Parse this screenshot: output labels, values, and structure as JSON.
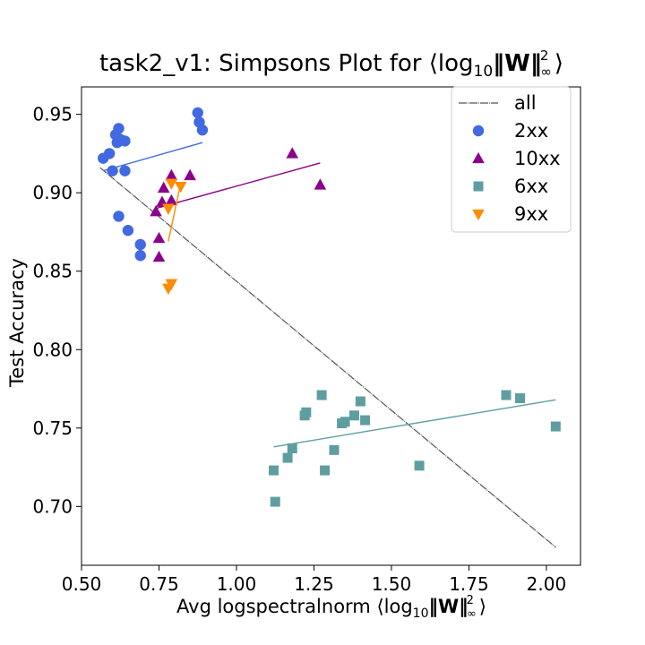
{
  "chart_data": {
    "type": "scatter",
    "title_main": "task2_v1: Simpsons Plot for ⟨log",
    "title_sub": "10",
    "title_bold": "‖W‖",
    "title_sup": "2",
    "title_sub2": "∞",
    "title_end": "⟩",
    "xlabel_main": "Avg logspectralnorm ⟨log",
    "xlabel_sub": "10",
    "xlabel_bold": "‖W‖",
    "xlabel_sup": "2",
    "xlabel_sub2": "∞",
    "xlabel_end": "⟩",
    "ylabel": "Test Accuracy",
    "xlim": [
      0.5,
      2.11
    ],
    "ylim": [
      0.6625,
      0.9675
    ],
    "xticks": [
      "0.50",
      "0.75",
      "1.00",
      "1.25",
      "1.50",
      "1.75",
      "2.00"
    ],
    "yticks": [
      "0.70",
      "0.75",
      "0.80",
      "0.85",
      "0.90",
      "0.95"
    ],
    "legend_position": "top-right",
    "grid": false,
    "all_line": {
      "name": "all",
      "color": "#555555",
      "x": [
        0.56,
        2.03
      ],
      "y": [
        0.916,
        0.674
      ]
    },
    "series": [
      {
        "name": "2xx",
        "marker": "circle",
        "color": "#4169e1",
        "points": [
          [
            0.57,
            0.922
          ],
          [
            0.59,
            0.925
          ],
          [
            0.6,
            0.914
          ],
          [
            0.61,
            0.937
          ],
          [
            0.615,
            0.932
          ],
          [
            0.62,
            0.941
          ],
          [
            0.625,
            0.934
          ],
          [
            0.64,
            0.933
          ],
          [
            0.64,
            0.914
          ],
          [
            0.62,
            0.885
          ],
          [
            0.65,
            0.876
          ],
          [
            0.69,
            0.867
          ],
          [
            0.69,
            0.86
          ],
          [
            0.875,
            0.951
          ],
          [
            0.88,
            0.945
          ],
          [
            0.89,
            0.94
          ]
        ],
        "fit": {
          "x": [
            0.57,
            0.89
          ],
          "y": [
            0.914,
            0.932
          ]
        }
      },
      {
        "name": "10xx",
        "marker": "triangle-up",
        "color": "#8b008b",
        "points": [
          [
            0.74,
            0.888
          ],
          [
            0.75,
            0.871
          ],
          [
            0.75,
            0.859
          ],
          [
            0.76,
            0.894
          ],
          [
            0.765,
            0.903
          ],
          [
            0.79,
            0.911
          ],
          [
            0.79,
            0.895
          ],
          [
            0.85,
            0.911
          ],
          [
            1.18,
            0.925
          ],
          [
            1.27,
            0.905
          ]
        ],
        "fit": {
          "x": [
            0.74,
            1.27
          ],
          "y": [
            0.89,
            0.919
          ]
        }
      },
      {
        "name": "6xx",
        "marker": "square",
        "color": "#5f9ea0",
        "points": [
          [
            1.12,
            0.723
          ],
          [
            1.125,
            0.703
          ],
          [
            1.165,
            0.731
          ],
          [
            1.18,
            0.737
          ],
          [
            1.22,
            0.758
          ],
          [
            1.225,
            0.76
          ],
          [
            1.275,
            0.771
          ],
          [
            1.285,
            0.723
          ],
          [
            1.315,
            0.736
          ],
          [
            1.34,
            0.753
          ],
          [
            1.35,
            0.754
          ],
          [
            1.38,
            0.758
          ],
          [
            1.4,
            0.767
          ],
          [
            1.415,
            0.755
          ],
          [
            1.59,
            0.726
          ],
          [
            1.87,
            0.771
          ],
          [
            1.915,
            0.769
          ],
          [
            2.03,
            0.751
          ]
        ],
        "fit": {
          "x": [
            1.12,
            2.03
          ],
          "y": [
            0.738,
            0.768
          ]
        }
      },
      {
        "name": "9xx",
        "marker": "triangle-down",
        "color": "#ff8c00",
        "points": [
          [
            0.78,
            0.839
          ],
          [
            0.79,
            0.842
          ],
          [
            0.78,
            0.89
          ],
          [
            0.79,
            0.906
          ],
          [
            0.82,
            0.904
          ]
        ],
        "fit": {
          "x": [
            0.78,
            0.82
          ],
          "y": [
            0.869,
            0.906
          ]
        }
      }
    ]
  }
}
